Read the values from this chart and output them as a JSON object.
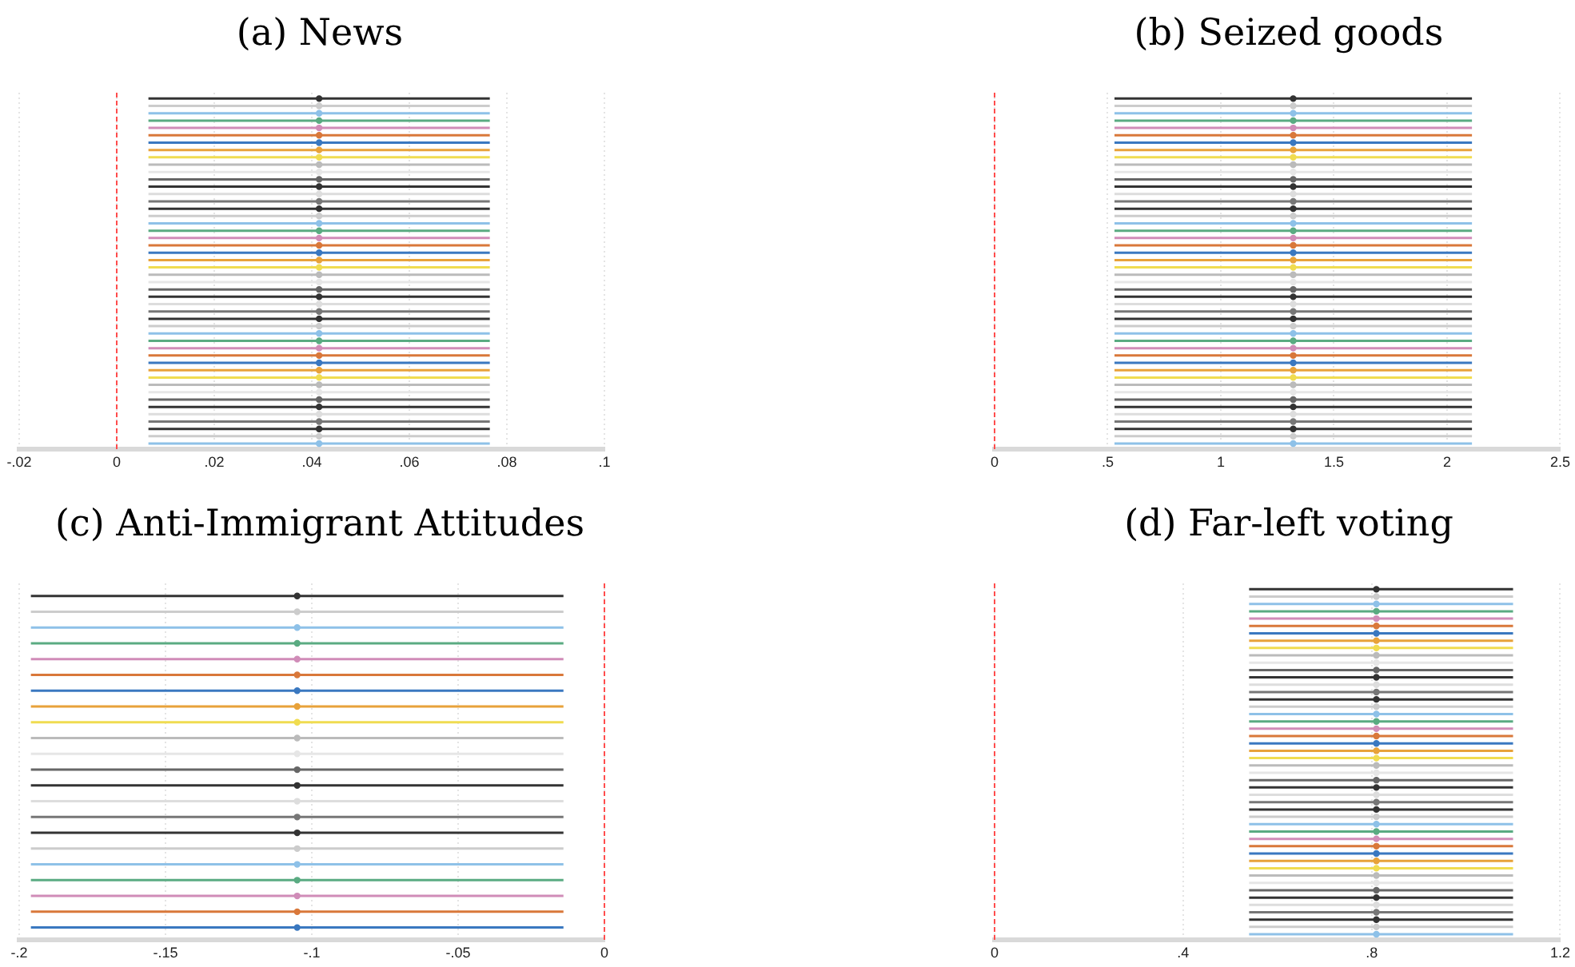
{
  "chart_data": [
    {
      "type": "scatter",
      "orientation": "horizontal",
      "title": "(a) News",
      "marker": "circle",
      "grid": "x",
      "tick_labels": "x",
      "categories": [
        null,
        null,
        null,
        null,
        null,
        null,
        null,
        null,
        null,
        null,
        null,
        null,
        null,
        null,
        null,
        null,
        null,
        null,
        null,
        null,
        null,
        null,
        null,
        null,
        null,
        null,
        null,
        null,
        null,
        null,
        null,
        null,
        null,
        null,
        null,
        null,
        null,
        null,
        null,
        null,
        null,
        null,
        null,
        null,
        null,
        null,
        null,
        null
      ],
      "values": [
        0.0415,
        0.0415,
        0.0415,
        0.0415,
        0.0415,
        0.0415,
        0.0415,
        0.0415,
        0.0415,
        0.0415,
        0.0415,
        0.0415,
        0.0415,
        0.0415,
        0.0415,
        0.0415,
        0.0415,
        0.0415,
        0.0415,
        0.0415,
        0.0415,
        0.0415,
        0.0415,
        0.0415,
        0.0415,
        0.0415,
        0.0415,
        0.0415,
        0.0415,
        0.0415,
        0.0415,
        0.0415,
        0.0415,
        0.0415,
        0.0415,
        0.0415,
        0.0415,
        0.0415,
        0.0415,
        0.0415,
        0.0415,
        0.0415,
        0.0415,
        0.0415,
        0.0415,
        0.0415,
        0.0415,
        0.0415
      ],
      "errors": [
        [
          0.0065,
          0.0765
        ],
        [
          0.0065,
          0.0765
        ],
        [
          0.0065,
          0.0765
        ],
        [
          0.0065,
          0.0765
        ],
        [
          0.0065,
          0.0765
        ],
        [
          0.0065,
          0.0765
        ],
        [
          0.0065,
          0.0765
        ],
        [
          0.0065,
          0.0765
        ],
        [
          0.0065,
          0.0765
        ],
        [
          0.0065,
          0.0765
        ],
        [
          0.0065,
          0.0765
        ],
        [
          0.0065,
          0.0765
        ],
        [
          0.0065,
          0.0765
        ],
        [
          0.0065,
          0.0765
        ],
        [
          0.0065,
          0.0765
        ],
        [
          0.0065,
          0.0765
        ],
        [
          0.0065,
          0.0765
        ],
        [
          0.0065,
          0.0765
        ],
        [
          0.0065,
          0.0765
        ],
        [
          0.0065,
          0.0765
        ],
        [
          0.0065,
          0.0765
        ],
        [
          0.0065,
          0.0765
        ],
        [
          0.0065,
          0.0765
        ],
        [
          0.0065,
          0.0765
        ],
        [
          0.0065,
          0.0765
        ],
        [
          0.0065,
          0.0765
        ],
        [
          0.0065,
          0.0765
        ],
        [
          0.0065,
          0.0765
        ],
        [
          0.0065,
          0.0765
        ],
        [
          0.0065,
          0.0765
        ],
        [
          0.0065,
          0.0765
        ],
        [
          0.0065,
          0.0765
        ],
        [
          0.0065,
          0.0765
        ],
        [
          0.0065,
          0.0765
        ],
        [
          0.0065,
          0.0765
        ],
        [
          0.0065,
          0.0765
        ],
        [
          0.0065,
          0.0765
        ],
        [
          0.0065,
          0.0765
        ],
        [
          0.0065,
          0.0765
        ],
        [
          0.0065,
          0.0765
        ],
        [
          0.0065,
          0.0765
        ],
        [
          0.0065,
          0.0765
        ],
        [
          0.0065,
          0.0765
        ],
        [
          0.0065,
          0.0765
        ],
        [
          0.0065,
          0.0765
        ],
        [
          0.0065,
          0.0765
        ],
        [
          0.0065,
          0.0765
        ],
        [
          0.0065,
          0.0765
        ]
      ],
      "colors": [
        "#333333",
        "#cccccc",
        "#8ec1e8",
        "#5aab82",
        "#d08cb8",
        "#d9783a",
        "#3a78c0",
        "#e8a23a",
        "#f0dc50",
        "#bbbbbb",
        "#e6e6e6",
        "#666666",
        "#333333",
        "#dddddd",
        "#777777",
        "#333333",
        "#cccccc",
        "#8ec1e8",
        "#5aab82",
        "#d08cb8",
        "#d9783a",
        "#3a78c0",
        "#e8a23a",
        "#f0dc50",
        "#bbbbbb",
        "#e6e6e6",
        "#666666",
        "#333333",
        "#dddddd",
        "#777777",
        "#333333",
        "#cccccc",
        "#8ec1e8",
        "#5aab82",
        "#d08cb8",
        "#d9783a",
        "#3a78c0",
        "#e8a23a",
        "#f0dc50",
        "#bbbbbb",
        "#e6e6e6",
        "#666666",
        "#333333",
        "#dddddd",
        "#777777",
        "#333333",
        "#cccccc",
        "#8ec1e8"
      ],
      "xlim": [
        -0.02,
        0.1
      ],
      "xticks": [
        {
          "value": -0.02,
          "label": "-.02"
        },
        0,
        {
          "value": 0.02,
          "label": ".02"
        },
        {
          "value": 0.04,
          "label": ".04"
        },
        {
          "value": 0.06,
          "label": ".06"
        },
        {
          "value": 0.08,
          "label": ".08"
        },
        {
          "value": 0.1,
          "label": ".1"
        }
      ],
      "ref_lines": [
        {
          "axis": "x",
          "value": 0,
          "color": "#ff4d4d",
          "line_style": "dashed"
        }
      ]
    },
    {
      "type": "scatter",
      "orientation": "horizontal",
      "title": "(b) Seized goods",
      "marker": "circle",
      "grid": "x",
      "tick_labels": "x",
      "categories": [
        null,
        null,
        null,
        null,
        null,
        null,
        null,
        null,
        null,
        null,
        null,
        null,
        null,
        null,
        null,
        null,
        null,
        null,
        null,
        null,
        null,
        null,
        null,
        null,
        null,
        null,
        null,
        null,
        null,
        null,
        null,
        null,
        null,
        null,
        null,
        null,
        null,
        null,
        null,
        null,
        null,
        null,
        null,
        null,
        null,
        null,
        null,
        null
      ],
      "values": [
        1.32,
        1.32,
        1.32,
        1.32,
        1.32,
        1.32,
        1.32,
        1.32,
        1.32,
        1.32,
        1.32,
        1.32,
        1.32,
        1.32,
        1.32,
        1.32,
        1.32,
        1.32,
        1.32,
        1.32,
        1.32,
        1.32,
        1.32,
        1.32,
        1.32,
        1.32,
        1.32,
        1.32,
        1.32,
        1.32,
        1.32,
        1.32,
        1.32,
        1.32,
        1.32,
        1.32,
        1.32,
        1.32,
        1.32,
        1.32,
        1.32,
        1.32,
        1.32,
        1.32,
        1.32,
        1.32,
        1.32,
        1.32
      ],
      "errors": [
        [
          0.53,
          2.11
        ],
        [
          0.53,
          2.11
        ],
        [
          0.53,
          2.11
        ],
        [
          0.53,
          2.11
        ],
        [
          0.53,
          2.11
        ],
        [
          0.53,
          2.11
        ],
        [
          0.53,
          2.11
        ],
        [
          0.53,
          2.11
        ],
        [
          0.53,
          2.11
        ],
        [
          0.53,
          2.11
        ],
        [
          0.53,
          2.11
        ],
        [
          0.53,
          2.11
        ],
        [
          0.53,
          2.11
        ],
        [
          0.53,
          2.11
        ],
        [
          0.53,
          2.11
        ],
        [
          0.53,
          2.11
        ],
        [
          0.53,
          2.11
        ],
        [
          0.53,
          2.11
        ],
        [
          0.53,
          2.11
        ],
        [
          0.53,
          2.11
        ],
        [
          0.53,
          2.11
        ],
        [
          0.53,
          2.11
        ],
        [
          0.53,
          2.11
        ],
        [
          0.53,
          2.11
        ],
        [
          0.53,
          2.11
        ],
        [
          0.53,
          2.11
        ],
        [
          0.53,
          2.11
        ],
        [
          0.53,
          2.11
        ],
        [
          0.53,
          2.11
        ],
        [
          0.53,
          2.11
        ],
        [
          0.53,
          2.11
        ],
        [
          0.53,
          2.11
        ],
        [
          0.53,
          2.11
        ],
        [
          0.53,
          2.11
        ],
        [
          0.53,
          2.11
        ],
        [
          0.53,
          2.11
        ],
        [
          0.53,
          2.11
        ],
        [
          0.53,
          2.11
        ],
        [
          0.53,
          2.11
        ],
        [
          0.53,
          2.11
        ],
        [
          0.53,
          2.11
        ],
        [
          0.53,
          2.11
        ],
        [
          0.53,
          2.11
        ],
        [
          0.53,
          2.11
        ],
        [
          0.53,
          2.11
        ],
        [
          0.53,
          2.11
        ],
        [
          0.53,
          2.11
        ],
        [
          0.53,
          2.11
        ]
      ],
      "colors": [
        "#333333",
        "#cccccc",
        "#8ec1e8",
        "#5aab82",
        "#d08cb8",
        "#d9783a",
        "#3a78c0",
        "#e8a23a",
        "#f0dc50",
        "#bbbbbb",
        "#e6e6e6",
        "#666666",
        "#333333",
        "#dddddd",
        "#777777",
        "#333333",
        "#cccccc",
        "#8ec1e8",
        "#5aab82",
        "#d08cb8",
        "#d9783a",
        "#3a78c0",
        "#e8a23a",
        "#f0dc50",
        "#bbbbbb",
        "#e6e6e6",
        "#666666",
        "#333333",
        "#dddddd",
        "#777777",
        "#333333",
        "#cccccc",
        "#8ec1e8",
        "#5aab82",
        "#d08cb8",
        "#d9783a",
        "#3a78c0",
        "#e8a23a",
        "#f0dc50",
        "#bbbbbb",
        "#e6e6e6",
        "#666666",
        "#333333",
        "#dddddd",
        "#777777",
        "#333333",
        "#cccccc",
        "#8ec1e8"
      ],
      "xlim": [
        0,
        2.5
      ],
      "xticks": [
        0,
        {
          "value": 0.5,
          "label": ".5"
        },
        1,
        1.5,
        2,
        2.5
      ],
      "ref_lines": [
        {
          "axis": "x",
          "value": 0,
          "color": "#ff4d4d",
          "line_style": "dashed"
        }
      ]
    },
    {
      "type": "scatter",
      "orientation": "horizontal",
      "title": "(c) Anti-Immigrant Attitudes",
      "marker": "circle",
      "grid": "x",
      "tick_labels": "x",
      "categories": [
        null,
        null,
        null,
        null,
        null,
        null,
        null,
        null,
        null,
        null,
        null,
        null,
        null,
        null,
        null,
        null,
        null,
        null,
        null,
        null,
        null,
        null
      ],
      "values": [
        -0.105,
        -0.105,
        -0.105,
        -0.105,
        -0.105,
        -0.105,
        -0.105,
        -0.105,
        -0.105,
        -0.105,
        -0.105,
        -0.105,
        -0.105,
        -0.105,
        -0.105,
        -0.105,
        -0.105,
        -0.105,
        -0.105,
        -0.105,
        -0.105,
        -0.105
      ],
      "errors": [
        [
          -0.196,
          -0.014
        ],
        [
          -0.196,
          -0.014
        ],
        [
          -0.196,
          -0.014
        ],
        [
          -0.196,
          -0.014
        ],
        [
          -0.196,
          -0.014
        ],
        [
          -0.196,
          -0.014
        ],
        [
          -0.196,
          -0.014
        ],
        [
          -0.196,
          -0.014
        ],
        [
          -0.196,
          -0.014
        ],
        [
          -0.196,
          -0.014
        ],
        [
          -0.196,
          -0.014
        ],
        [
          -0.196,
          -0.014
        ],
        [
          -0.196,
          -0.014
        ],
        [
          -0.196,
          -0.014
        ],
        [
          -0.196,
          -0.014
        ],
        [
          -0.196,
          -0.014
        ],
        [
          -0.196,
          -0.014
        ],
        [
          -0.196,
          -0.014
        ],
        [
          -0.196,
          -0.014
        ],
        [
          -0.196,
          -0.014
        ],
        [
          -0.196,
          -0.014
        ],
        [
          -0.196,
          -0.014
        ]
      ],
      "colors": [
        "#333333",
        "#cccccc",
        "#8ec1e8",
        "#5aab82",
        "#d08cb8",
        "#d9783a",
        "#3a78c0",
        "#e8a23a",
        "#f0dc50",
        "#bbbbbb",
        "#e6e6e6",
        "#666666",
        "#333333",
        "#dddddd",
        "#777777",
        "#333333",
        "#cccccc",
        "#8ec1e8",
        "#5aab82",
        "#d08cb8",
        "#d9783a",
        "#3a78c0"
      ],
      "xlim": [
        -0.2,
        0
      ],
      "xticks": [
        {
          "value": -0.2,
          "label": "-.2"
        },
        {
          "value": -0.15,
          "label": "-.15"
        },
        {
          "value": -0.1,
          "label": "-.1"
        },
        {
          "value": -0.05,
          "label": "-.05"
        },
        0
      ],
      "ref_lines": [
        {
          "axis": "x",
          "value": 0,
          "color": "#ff4d4d",
          "line_style": "dashed"
        }
      ]
    },
    {
      "type": "scatter",
      "orientation": "horizontal",
      "title": "(d) Far-left voting",
      "marker": "circle",
      "grid": "x",
      "tick_labels": "x",
      "categories": [
        null,
        null,
        null,
        null,
        null,
        null,
        null,
        null,
        null,
        null,
        null,
        null,
        null,
        null,
        null,
        null,
        null,
        null,
        null,
        null,
        null,
        null,
        null,
        null,
        null,
        null,
        null,
        null,
        null,
        null,
        null,
        null,
        null,
        null,
        null,
        null,
        null,
        null,
        null,
        null,
        null,
        null,
        null,
        null,
        null,
        null,
        null,
        null
      ],
      "values": [
        0.81,
        0.81,
        0.81,
        0.81,
        0.81,
        0.81,
        0.81,
        0.81,
        0.81,
        0.81,
        0.81,
        0.81,
        0.81,
        0.81,
        0.81,
        0.81,
        0.81,
        0.81,
        0.81,
        0.81,
        0.81,
        0.81,
        0.81,
        0.81,
        0.81,
        0.81,
        0.81,
        0.81,
        0.81,
        0.81,
        0.81,
        0.81,
        0.81,
        0.81,
        0.81,
        0.81,
        0.81,
        0.81,
        0.81,
        0.81,
        0.81,
        0.81,
        0.81,
        0.81,
        0.81,
        0.81,
        0.81,
        0.81
      ],
      "errors": [
        [
          0.54,
          1.1
        ],
        [
          0.54,
          1.1
        ],
        [
          0.54,
          1.1
        ],
        [
          0.54,
          1.1
        ],
        [
          0.54,
          1.1
        ],
        [
          0.54,
          1.1
        ],
        [
          0.54,
          1.1
        ],
        [
          0.54,
          1.1
        ],
        [
          0.54,
          1.1
        ],
        [
          0.54,
          1.1
        ],
        [
          0.54,
          1.1
        ],
        [
          0.54,
          1.1
        ],
        [
          0.54,
          1.1
        ],
        [
          0.54,
          1.1
        ],
        [
          0.54,
          1.1
        ],
        [
          0.54,
          1.1
        ],
        [
          0.54,
          1.1
        ],
        [
          0.54,
          1.1
        ],
        [
          0.54,
          1.1
        ],
        [
          0.54,
          1.1
        ],
        [
          0.54,
          1.1
        ],
        [
          0.54,
          1.1
        ],
        [
          0.54,
          1.1
        ],
        [
          0.54,
          1.1
        ],
        [
          0.54,
          1.1
        ],
        [
          0.54,
          1.1
        ],
        [
          0.54,
          1.1
        ],
        [
          0.54,
          1.1
        ],
        [
          0.54,
          1.1
        ],
        [
          0.54,
          1.1
        ],
        [
          0.54,
          1.1
        ],
        [
          0.54,
          1.1
        ],
        [
          0.54,
          1.1
        ],
        [
          0.54,
          1.1
        ],
        [
          0.54,
          1.1
        ],
        [
          0.54,
          1.1
        ],
        [
          0.54,
          1.1
        ],
        [
          0.54,
          1.1
        ],
        [
          0.54,
          1.1
        ],
        [
          0.54,
          1.1
        ],
        [
          0.54,
          1.1
        ],
        [
          0.54,
          1.1
        ],
        [
          0.54,
          1.1
        ],
        [
          0.54,
          1.1
        ],
        [
          0.54,
          1.1
        ],
        [
          0.54,
          1.1
        ],
        [
          0.54,
          1.1
        ],
        [
          0.54,
          1.1
        ]
      ],
      "colors": [
        "#333333",
        "#cccccc",
        "#8ec1e8",
        "#5aab82",
        "#d08cb8",
        "#d9783a",
        "#3a78c0",
        "#e8a23a",
        "#f0dc50",
        "#bbbbbb",
        "#e6e6e6",
        "#666666",
        "#333333",
        "#dddddd",
        "#777777",
        "#333333",
        "#cccccc",
        "#8ec1e8",
        "#5aab82",
        "#d08cb8",
        "#d9783a",
        "#3a78c0",
        "#e8a23a",
        "#f0dc50",
        "#bbbbbb",
        "#e6e6e6",
        "#666666",
        "#333333",
        "#dddddd",
        "#777777",
        "#333333",
        "#cccccc",
        "#8ec1e8",
        "#5aab82",
        "#d08cb8",
        "#d9783a",
        "#3a78c0",
        "#e8a23a",
        "#f0dc50",
        "#bbbbbb",
        "#e6e6e6",
        "#666666",
        "#333333",
        "#dddddd",
        "#777777",
        "#333333",
        "#cccccc",
        "#8ec1e8"
      ],
      "xlim": [
        0,
        1.2
      ],
      "xticks": [
        0,
        {
          "value": 0.4,
          "label": ".4"
        },
        {
          "value": 0.8,
          "label": ".8"
        },
        1.2
      ],
      "ref_lines": [
        {
          "axis": "x",
          "value": 0,
          "color": "#ff4d4d",
          "line_style": "dashed"
        }
      ]
    }
  ]
}
